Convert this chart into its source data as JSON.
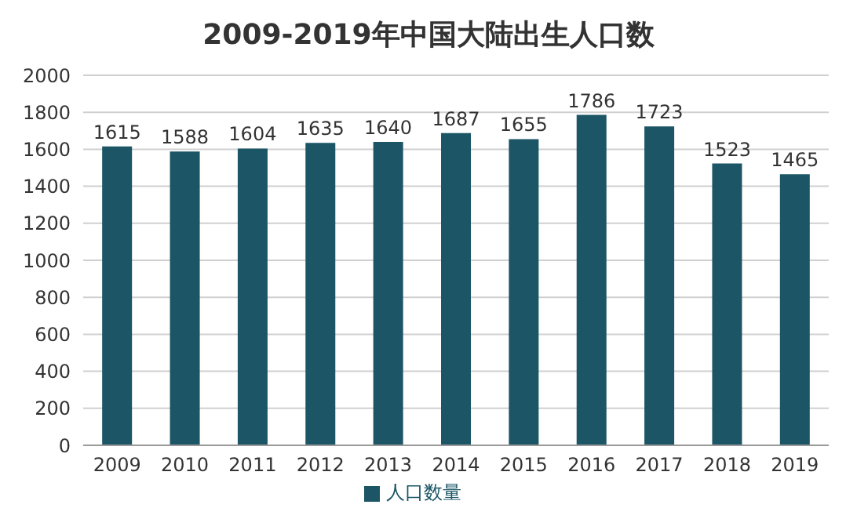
{
  "chart_data": {
    "type": "bar",
    "title": "2009-2019年中国大陆出生人口数",
    "categories": [
      "2009",
      "2010",
      "2011",
      "2012",
      "2013",
      "2014",
      "2015",
      "2016",
      "2017",
      "2018",
      "2019"
    ],
    "series": [
      {
        "name": "人口数量",
        "color": "#1b5566",
        "values": [
          1615,
          1588,
          1604,
          1635,
          1640,
          1687,
          1655,
          1786,
          1723,
          1523,
          1465
        ]
      }
    ],
    "ylim": [
      0,
      2000
    ],
    "yticks": [
      0,
      200,
      400,
      600,
      800,
      1000,
      1200,
      1400,
      1600,
      1800,
      2000
    ],
    "grid": "y",
    "data_labels": true,
    "legend": "bottom"
  }
}
